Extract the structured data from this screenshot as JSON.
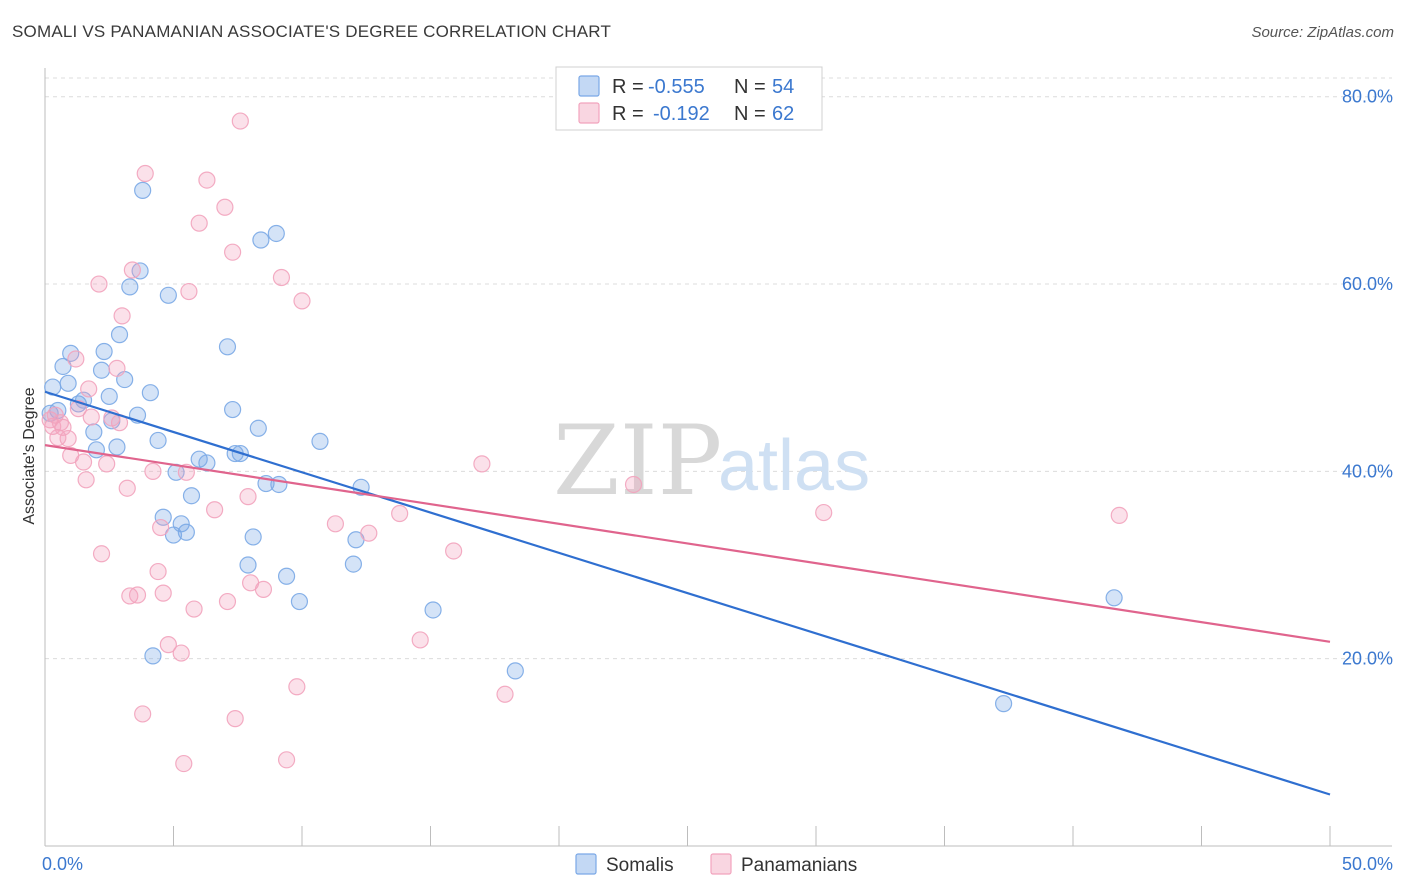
{
  "header": {
    "title": "SOMALI VS PANAMANIAN ASSOCIATE'S DEGREE CORRELATION CHART",
    "source": "Source: ZipAtlas.com"
  },
  "watermark": {
    "zip": "ZIP",
    "atlas": "atlas"
  },
  "legend": {
    "rows": [
      {
        "r_label": "R =",
        "r_value": "-0.555",
        "n_label": "N =",
        "n_value": "54",
        "color": "#7aa8e6"
      },
      {
        "r_label": "R =",
        "r_value": "-0.192",
        "n_label": "N =",
        "n_value": "62",
        "color": "#f2a3bd"
      }
    ]
  },
  "chart_data": {
    "type": "scatter",
    "title": "SOMALI VS PANAMANIAN ASSOCIATE'S DEGREE CORRELATION CHART",
    "xlabel": "",
    "ylabel": "Associate's Degree",
    "xlim": [
      0,
      50
    ],
    "ylim": [
      0,
      82
    ],
    "x_tick_labels": [
      {
        "value": 0,
        "label": "0.0%"
      },
      {
        "value": 50,
        "label": "50.0%"
      }
    ],
    "y_tick_labels": [
      {
        "value": 20,
        "label": "20.0%"
      },
      {
        "value": 40,
        "label": "40.0%"
      },
      {
        "value": 60,
        "label": "60.0%"
      },
      {
        "value": 80,
        "label": "80.0%"
      }
    ],
    "grid": true,
    "legend_position": "bottom-center",
    "series": [
      {
        "name": "Somalis",
        "color": "#7aa8e6",
        "line_color": "#2f6fd0",
        "trend": {
          "x0": 0,
          "y0": 48.5,
          "x1": 50,
          "y1": 5.5
        },
        "points": [
          [
            0.3,
            49.0
          ],
          [
            0.5,
            46.5
          ],
          [
            0.7,
            51.2
          ],
          [
            0.9,
            49.4
          ],
          [
            1.0,
            52.6
          ],
          [
            1.3,
            47.2
          ],
          [
            1.5,
            47.6
          ],
          [
            1.9,
            44.2
          ],
          [
            2.0,
            42.3
          ],
          [
            2.2,
            50.8
          ],
          [
            2.3,
            52.8
          ],
          [
            2.6,
            45.4
          ],
          [
            2.8,
            42.6
          ],
          [
            2.9,
            54.6
          ],
          [
            3.1,
            49.8
          ],
          [
            3.3,
            59.7
          ],
          [
            3.6,
            46.0
          ],
          [
            3.7,
            61.4
          ],
          [
            3.8,
            70.0
          ],
          [
            4.1,
            48.4
          ],
          [
            4.2,
            20.3
          ],
          [
            4.4,
            43.3
          ],
          [
            4.6,
            35.1
          ],
          [
            4.8,
            58.8
          ],
          [
            5.0,
            33.2
          ],
          [
            5.1,
            39.9
          ],
          [
            5.3,
            34.4
          ],
          [
            5.5,
            33.5
          ],
          [
            5.7,
            37.4
          ],
          [
            6.0,
            41.3
          ],
          [
            6.3,
            40.9
          ],
          [
            7.1,
            53.3
          ],
          [
            7.3,
            46.6
          ],
          [
            7.4,
            41.9
          ],
          [
            7.6,
            41.9
          ],
          [
            7.9,
            30.0
          ],
          [
            8.1,
            33.0
          ],
          [
            8.3,
            44.6
          ],
          [
            8.4,
            64.7
          ],
          [
            8.6,
            38.7
          ],
          [
            9.0,
            65.4
          ],
          [
            9.1,
            38.6
          ],
          [
            9.4,
            28.8
          ],
          [
            9.9,
            26.1
          ],
          [
            10.7,
            43.2
          ],
          [
            12.0,
            30.1
          ],
          [
            12.1,
            32.7
          ],
          [
            12.3,
            38.3
          ],
          [
            15.1,
            25.2
          ],
          [
            18.3,
            18.7
          ],
          [
            37.3,
            15.2
          ],
          [
            41.6,
            26.5
          ],
          [
            0.2,
            46.2
          ],
          [
            2.5,
            48.0
          ]
        ]
      },
      {
        "name": "Panamanians",
        "color": "#f2a3bd",
        "line_color": "#e0648d",
        "trend": {
          "x0": 0,
          "y0": 42.8,
          "x1": 50,
          "y1": 21.8
        },
        "points": [
          [
            0.2,
            45.5
          ],
          [
            0.3,
            44.8
          ],
          [
            0.4,
            46.0
          ],
          [
            0.5,
            43.6
          ],
          [
            0.6,
            45.2
          ],
          [
            0.7,
            44.7
          ],
          [
            0.9,
            43.5
          ],
          [
            1.0,
            41.7
          ],
          [
            1.2,
            52.0
          ],
          [
            1.3,
            46.7
          ],
          [
            1.5,
            41.0
          ],
          [
            1.6,
            39.1
          ],
          [
            1.7,
            48.8
          ],
          [
            1.8,
            45.8
          ],
          [
            2.1,
            60.0
          ],
          [
            2.2,
            31.2
          ],
          [
            2.4,
            40.8
          ],
          [
            2.6,
            45.7
          ],
          [
            2.8,
            51.0
          ],
          [
            2.9,
            45.2
          ],
          [
            3.0,
            56.6
          ],
          [
            3.2,
            38.2
          ],
          [
            3.3,
            26.7
          ],
          [
            3.4,
            61.5
          ],
          [
            3.6,
            26.8
          ],
          [
            3.8,
            14.1
          ],
          [
            3.9,
            71.8
          ],
          [
            4.2,
            40.0
          ],
          [
            4.4,
            29.3
          ],
          [
            4.5,
            34.0
          ],
          [
            4.6,
            27.0
          ],
          [
            4.8,
            21.5
          ],
          [
            5.3,
            20.6
          ],
          [
            5.4,
            8.8
          ],
          [
            5.5,
            39.9
          ],
          [
            5.6,
            59.2
          ],
          [
            5.8,
            25.3
          ],
          [
            6.0,
            66.5
          ],
          [
            6.3,
            71.1
          ],
          [
            6.6,
            35.9
          ],
          [
            7.0,
            68.2
          ],
          [
            7.1,
            26.1
          ],
          [
            7.3,
            63.4
          ],
          [
            7.4,
            13.6
          ],
          [
            7.6,
            77.4
          ],
          [
            7.9,
            37.3
          ],
          [
            8.0,
            28.1
          ],
          [
            8.5,
            27.4
          ],
          [
            9.2,
            60.7
          ],
          [
            9.4,
            9.2
          ],
          [
            9.8,
            17.0
          ],
          [
            10.0,
            58.2
          ],
          [
            11.3,
            34.4
          ],
          [
            12.6,
            33.4
          ],
          [
            13.8,
            35.5
          ],
          [
            14.6,
            22.0
          ],
          [
            15.9,
            31.5
          ],
          [
            17.0,
            40.8
          ],
          [
            17.9,
            16.2
          ],
          [
            22.9,
            38.6
          ],
          [
            30.3,
            35.6
          ],
          [
            41.8,
            35.3
          ]
        ]
      }
    ]
  }
}
